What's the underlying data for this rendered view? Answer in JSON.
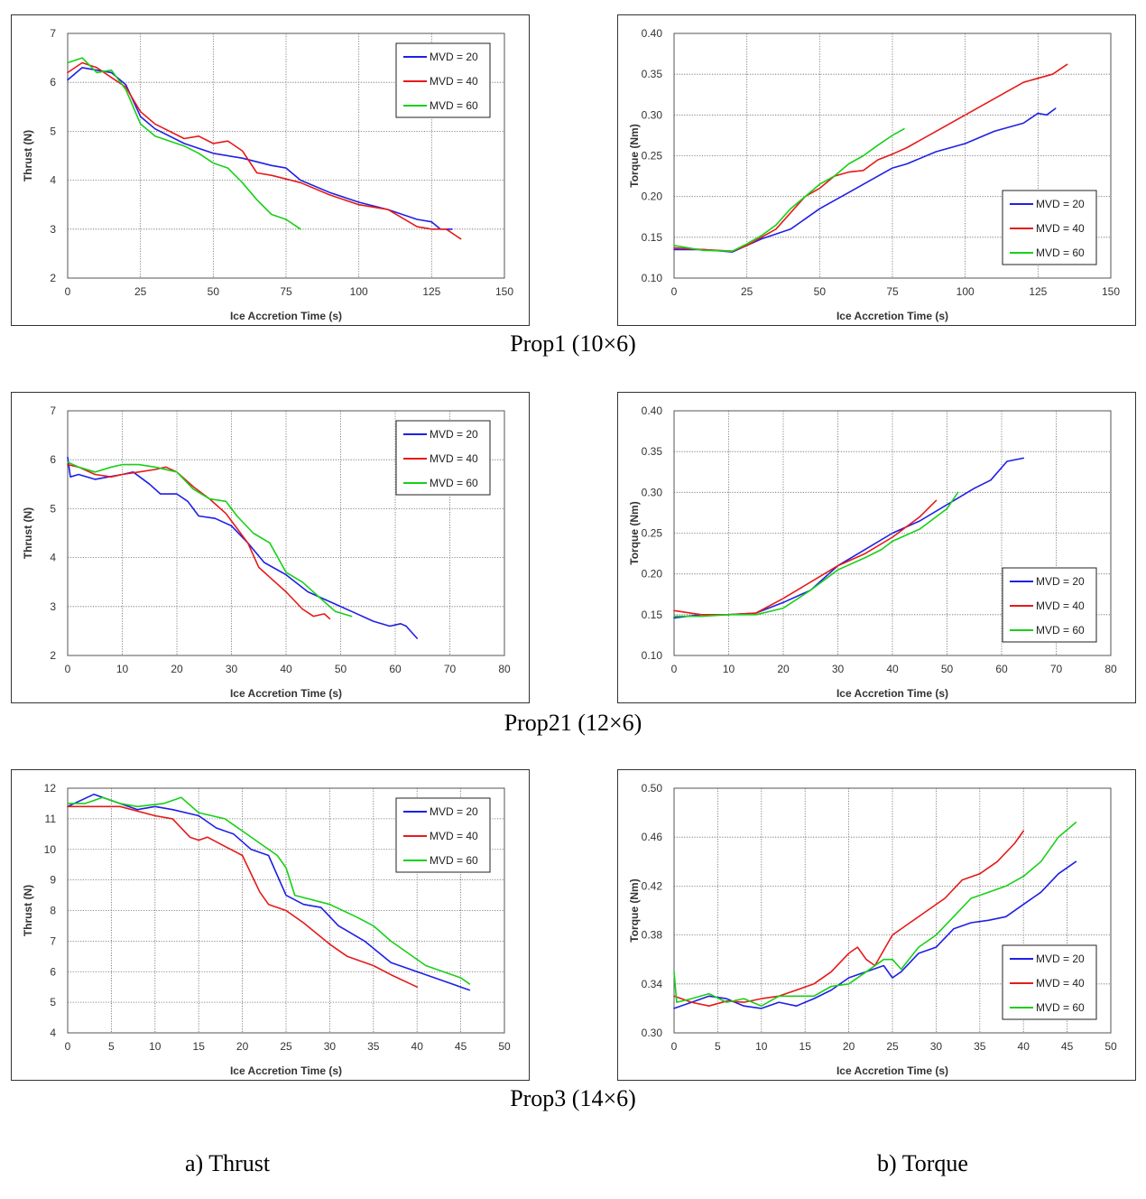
{
  "captions": {
    "row1": "Prop1 (10×6)",
    "row2": "Prop21 (12×6)",
    "row3": "Prop3 (14×6)",
    "thrust": "a)   Thrust",
    "torque": "b) Torque"
  },
  "colors": {
    "MVD = 20": "#1f1fe6",
    "MVD = 40": "#e61a1a",
    "MVD = 60": "#18d018"
  },
  "chart_data": [
    {
      "id": "prop1-thrust",
      "type": "line",
      "xlabel": "Ice Accretion Time (s)",
      "ylabel": "Thrust (N)",
      "xlim": [
        0,
        150
      ],
      "ylim": [
        2,
        7
      ],
      "xticks": [
        0,
        25,
        50,
        75,
        100,
        125,
        150
      ],
      "yticks": [
        2,
        3,
        4,
        5,
        6,
        7
      ],
      "ytick_decimals": 0,
      "grid": true,
      "legend_position": "top-right",
      "series": [
        {
          "name": "MVD = 20",
          "x": [
            0,
            5,
            10,
            15,
            20,
            25,
            30,
            40,
            50,
            60,
            70,
            75,
            80,
            90,
            100,
            110,
            120,
            125,
            128,
            132
          ],
          "y": [
            6.05,
            6.3,
            6.25,
            6.2,
            5.95,
            5.3,
            5.05,
            4.75,
            4.55,
            4.45,
            4.3,
            4.25,
            4.0,
            3.75,
            3.55,
            3.4,
            3.2,
            3.15,
            3.0,
            3.0
          ]
        },
        {
          "name": "MVD = 40",
          "x": [
            0,
            5,
            10,
            15,
            20,
            25,
            30,
            40,
            45,
            50,
            55,
            60,
            65,
            70,
            80,
            90,
            100,
            110,
            120,
            125,
            130,
            135
          ],
          "y": [
            6.2,
            6.4,
            6.3,
            6.1,
            5.9,
            5.4,
            5.15,
            4.85,
            4.9,
            4.75,
            4.8,
            4.6,
            4.15,
            4.1,
            3.95,
            3.7,
            3.5,
            3.4,
            3.05,
            3.0,
            3.0,
            2.8
          ]
        },
        {
          "name": "MVD = 60",
          "x": [
            0,
            5,
            10,
            15,
            20,
            25,
            30,
            35,
            40,
            45,
            50,
            55,
            60,
            65,
            70,
            75,
            80
          ],
          "y": [
            6.4,
            6.5,
            6.2,
            6.25,
            5.85,
            5.15,
            4.9,
            4.8,
            4.7,
            4.55,
            4.35,
            4.25,
            3.95,
            3.6,
            3.3,
            3.2,
            3.0
          ]
        }
      ]
    },
    {
      "id": "prop1-torque",
      "type": "line",
      "xlabel": "Ice Accretion Time (s)",
      "ylabel": "Torque (Nm)",
      "xlim": [
        0,
        150
      ],
      "ylim": [
        0.1,
        0.4
      ],
      "xticks": [
        0,
        25,
        50,
        75,
        100,
        125,
        150
      ],
      "yticks": [
        0.1,
        0.15,
        0.2,
        0.25,
        0.3,
        0.35,
        0.4
      ],
      "ytick_decimals": 2,
      "grid": true,
      "legend_position": "bottom-right",
      "series": [
        {
          "name": "MVD = 20",
          "x": [
            0,
            10,
            20,
            25,
            30,
            40,
            50,
            60,
            70,
            75,
            80,
            90,
            100,
            110,
            120,
            125,
            128,
            131
          ],
          "y": [
            0.135,
            0.135,
            0.132,
            0.14,
            0.148,
            0.16,
            0.185,
            0.205,
            0.225,
            0.235,
            0.24,
            0.255,
            0.265,
            0.28,
            0.29,
            0.302,
            0.3,
            0.308
          ]
        },
        {
          "name": "MVD = 40",
          "x": [
            0,
            10,
            20,
            25,
            30,
            35,
            40,
            45,
            50,
            55,
            60,
            65,
            70,
            75,
            80,
            90,
            100,
            105,
            110,
            120,
            125,
            130,
            135
          ],
          "y": [
            0.137,
            0.135,
            0.133,
            0.14,
            0.15,
            0.16,
            0.18,
            0.2,
            0.21,
            0.225,
            0.23,
            0.232,
            0.245,
            0.252,
            0.26,
            0.28,
            0.3,
            0.31,
            0.32,
            0.34,
            0.345,
            0.35,
            0.362
          ]
        },
        {
          "name": "MVD = 60",
          "x": [
            0,
            10,
            20,
            25,
            30,
            35,
            40,
            45,
            50,
            55,
            60,
            65,
            70,
            75,
            79
          ],
          "y": [
            0.14,
            0.134,
            0.133,
            0.142,
            0.152,
            0.165,
            0.185,
            0.2,
            0.215,
            0.225,
            0.24,
            0.25,
            0.263,
            0.275,
            0.283
          ]
        }
      ]
    },
    {
      "id": "prop21-thrust",
      "type": "line",
      "xlabel": "Ice Accretion Time (s)",
      "ylabel": "Thrust (N)",
      "xlim": [
        0,
        80
      ],
      "ylim": [
        2,
        7
      ],
      "xticks": [
        0,
        10,
        20,
        30,
        40,
        50,
        60,
        70,
        80
      ],
      "yticks": [
        2,
        3,
        4,
        5,
        6,
        7
      ],
      "ytick_decimals": 0,
      "grid": true,
      "legend_position": "top-right",
      "series": [
        {
          "name": "MVD = 20",
          "x": [
            0,
            0.5,
            2,
            5,
            10,
            12,
            15,
            17,
            20,
            22,
            24,
            27,
            30,
            33,
            36,
            40,
            44,
            48,
            52,
            56,
            59,
            61,
            62,
            64
          ],
          "y": [
            6.05,
            5.65,
            5.7,
            5.6,
            5.7,
            5.75,
            5.5,
            5.3,
            5.3,
            5.15,
            4.85,
            4.8,
            4.65,
            4.3,
            3.9,
            3.65,
            3.3,
            3.1,
            2.9,
            2.7,
            2.6,
            2.65,
            2.6,
            2.35
          ]
        },
        {
          "name": "MVD = 40",
          "x": [
            0,
            2,
            5,
            8,
            10,
            13,
            16,
            18,
            20,
            23,
            26,
            29,
            31,
            33,
            35,
            37,
            40,
            43,
            45,
            47,
            48
          ],
          "y": [
            5.9,
            5.85,
            5.7,
            5.65,
            5.7,
            5.75,
            5.8,
            5.85,
            5.75,
            5.45,
            5.2,
            4.9,
            4.6,
            4.3,
            3.8,
            3.6,
            3.3,
            2.95,
            2.8,
            2.85,
            2.75
          ]
        },
        {
          "name": "MVD = 60",
          "x": [
            0,
            2,
            5,
            8,
            10,
            13,
            16,
            20,
            23,
            26,
            29,
            31,
            34,
            37,
            40,
            43,
            46,
            49,
            52
          ],
          "y": [
            5.95,
            5.85,
            5.75,
            5.85,
            5.9,
            5.9,
            5.85,
            5.75,
            5.4,
            5.2,
            5.15,
            4.85,
            4.5,
            4.3,
            3.7,
            3.5,
            3.2,
            2.9,
            2.8
          ]
        }
      ]
    },
    {
      "id": "prop21-torque",
      "type": "line",
      "xlabel": "Ice Accretion Time (s)",
      "ylabel": "Torque (Nm)",
      "xlim": [
        0,
        80
      ],
      "ylim": [
        0.1,
        0.4
      ],
      "xticks": [
        0,
        10,
        20,
        30,
        40,
        50,
        60,
        70,
        80
      ],
      "yticks": [
        0.1,
        0.15,
        0.2,
        0.25,
        0.3,
        0.35,
        0.4
      ],
      "ytick_decimals": 2,
      "grid": true,
      "legend_position": "bottom-right",
      "series": [
        {
          "name": "MVD = 20",
          "x": [
            0,
            5,
            10,
            15,
            20,
            25,
            30,
            35,
            40,
            45,
            50,
            55,
            58,
            61,
            64
          ],
          "y": [
            0.146,
            0.15,
            0.15,
            0.152,
            0.165,
            0.18,
            0.21,
            0.23,
            0.25,
            0.265,
            0.285,
            0.305,
            0.315,
            0.338,
            0.342
          ]
        },
        {
          "name": "MVD = 40",
          "x": [
            0,
            5,
            10,
            15,
            20,
            25,
            30,
            35,
            40,
            45,
            48
          ],
          "y": [
            0.155,
            0.15,
            0.15,
            0.152,
            0.17,
            0.19,
            0.21,
            0.225,
            0.245,
            0.27,
            0.29
          ]
        },
        {
          "name": "MVD = 60",
          "x": [
            0,
            5,
            10,
            15,
            20,
            25,
            30,
            35,
            38,
            40,
            45,
            50,
            52
          ],
          "y": [
            0.148,
            0.148,
            0.15,
            0.15,
            0.158,
            0.18,
            0.205,
            0.22,
            0.23,
            0.24,
            0.255,
            0.28,
            0.3
          ]
        }
      ]
    },
    {
      "id": "prop3-thrust",
      "type": "line",
      "xlabel": "Ice Accretion Time (s)",
      "ylabel": "Thrust (N)",
      "xlim": [
        0,
        50
      ],
      "ylim": [
        4,
        12
      ],
      "xticks": [
        0,
        5,
        10,
        15,
        20,
        25,
        30,
        35,
        40,
        45,
        50
      ],
      "yticks": [
        4,
        5,
        6,
        7,
        8,
        9,
        10,
        11,
        12
      ],
      "ytick_decimals": 0,
      "grid": true,
      "legend_position": "top-right",
      "series": [
        {
          "name": "MVD = 20",
          "x": [
            0,
            3,
            5,
            8,
            10,
            12,
            15,
            17,
            19,
            21,
            23,
            25,
            27,
            29,
            31,
            34,
            37,
            40,
            43,
            46
          ],
          "y": [
            11.4,
            11.8,
            11.6,
            11.3,
            11.4,
            11.3,
            11.1,
            10.7,
            10.5,
            10.0,
            9.8,
            8.5,
            8.2,
            8.1,
            7.5,
            7.0,
            6.3,
            6.0,
            5.7,
            5.4
          ]
        },
        {
          "name": "MVD = 40",
          "x": [
            0,
            3,
            6,
            10,
            12,
            14,
            15,
            16,
            18,
            20,
            21,
            22,
            23,
            25,
            27,
            30,
            32,
            35,
            37,
            40
          ],
          "y": [
            11.4,
            11.4,
            11.4,
            11.1,
            11.0,
            10.4,
            10.3,
            10.4,
            10.1,
            9.8,
            9.2,
            8.6,
            8.2,
            8.0,
            7.6,
            6.9,
            6.5,
            6.2,
            5.9,
            5.5
          ]
        },
        {
          "name": "MVD = 60",
          "x": [
            0,
            2,
            4,
            6,
            8,
            11,
            13,
            15,
            18,
            20,
            22,
            24,
            25,
            26,
            30,
            33,
            35,
            37,
            39,
            41,
            43,
            45,
            46
          ],
          "y": [
            11.5,
            11.5,
            11.7,
            11.5,
            11.4,
            11.5,
            11.7,
            11.2,
            11.0,
            10.6,
            10.2,
            9.8,
            9.4,
            8.5,
            8.2,
            7.8,
            7.5,
            7.0,
            6.6,
            6.2,
            6.0,
            5.8,
            5.6
          ]
        }
      ]
    },
    {
      "id": "prop3-torque",
      "type": "line",
      "xlabel": "Ice Accretion Time (s)",
      "ylabel": "Torque (Nm)",
      "xlim": [
        0,
        50
      ],
      "ylim": [
        0.3,
        0.5
      ],
      "xticks": [
        0,
        5,
        10,
        15,
        20,
        25,
        30,
        35,
        40,
        45,
        50
      ],
      "yticks": [
        0.3,
        0.34,
        0.38,
        0.42,
        0.46,
        0.5
      ],
      "ytick_decimals": 2,
      "grid": true,
      "legend_position": "bottom-right",
      "series": [
        {
          "name": "MVD = 20",
          "x": [
            0,
            2,
            4,
            6,
            8,
            10,
            12,
            14,
            16,
            18,
            20,
            22,
            24,
            25,
            26,
            28,
            30,
            32,
            34,
            36,
            38,
            40,
            42,
            44,
            46
          ],
          "y": [
            0.32,
            0.325,
            0.33,
            0.328,
            0.322,
            0.32,
            0.325,
            0.322,
            0.328,
            0.335,
            0.345,
            0.35,
            0.355,
            0.345,
            0.35,
            0.365,
            0.37,
            0.385,
            0.39,
            0.392,
            0.395,
            0.405,
            0.415,
            0.43,
            0.44
          ]
        },
        {
          "name": "MVD = 40",
          "x": [
            0,
            2,
            4,
            6,
            8,
            10,
            12,
            14,
            16,
            18,
            20,
            21,
            22,
            23,
            25,
            27,
            29,
            31,
            33,
            35,
            37,
            39,
            40
          ],
          "y": [
            0.33,
            0.325,
            0.322,
            0.326,
            0.325,
            0.328,
            0.33,
            0.335,
            0.34,
            0.35,
            0.365,
            0.37,
            0.36,
            0.355,
            0.38,
            0.39,
            0.4,
            0.41,
            0.425,
            0.43,
            0.44,
            0.455,
            0.465
          ]
        },
        {
          "name": "MVD = 60",
          "x": [
            0,
            0.3,
            2,
            4,
            6,
            8,
            10,
            12,
            14,
            16,
            18,
            20,
            22,
            24,
            25,
            26,
            28,
            30,
            32,
            34,
            36,
            38,
            40,
            42,
            44,
            46
          ],
          "y": [
            0.35,
            0.325,
            0.328,
            0.332,
            0.325,
            0.328,
            0.322,
            0.33,
            0.33,
            0.33,
            0.338,
            0.34,
            0.35,
            0.36,
            0.36,
            0.352,
            0.37,
            0.38,
            0.395,
            0.41,
            0.415,
            0.42,
            0.428,
            0.44,
            0.46,
            0.472
          ]
        }
      ]
    }
  ]
}
